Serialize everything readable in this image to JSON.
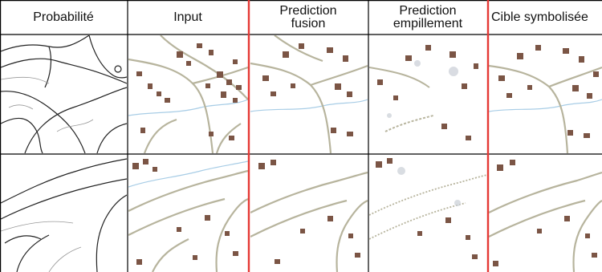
{
  "figure": {
    "columns": [
      {
        "key": "probability",
        "label": "Probabilité"
      },
      {
        "key": "input",
        "label": "Input"
      },
      {
        "key": "pred_fusion",
        "label": "Prediction\nfusion"
      },
      {
        "key": "pred_stack",
        "label": "Prediction\nempillement"
      },
      {
        "key": "target",
        "label": "Cible symbolisée"
      }
    ],
    "rows": 2,
    "colors": {
      "grid_line": "#000000",
      "highlight_line": "#e53935",
      "building": "#7b5545",
      "road": "#b7b49d",
      "river": "#a8cde6",
      "sketch": "#222222"
    }
  }
}
